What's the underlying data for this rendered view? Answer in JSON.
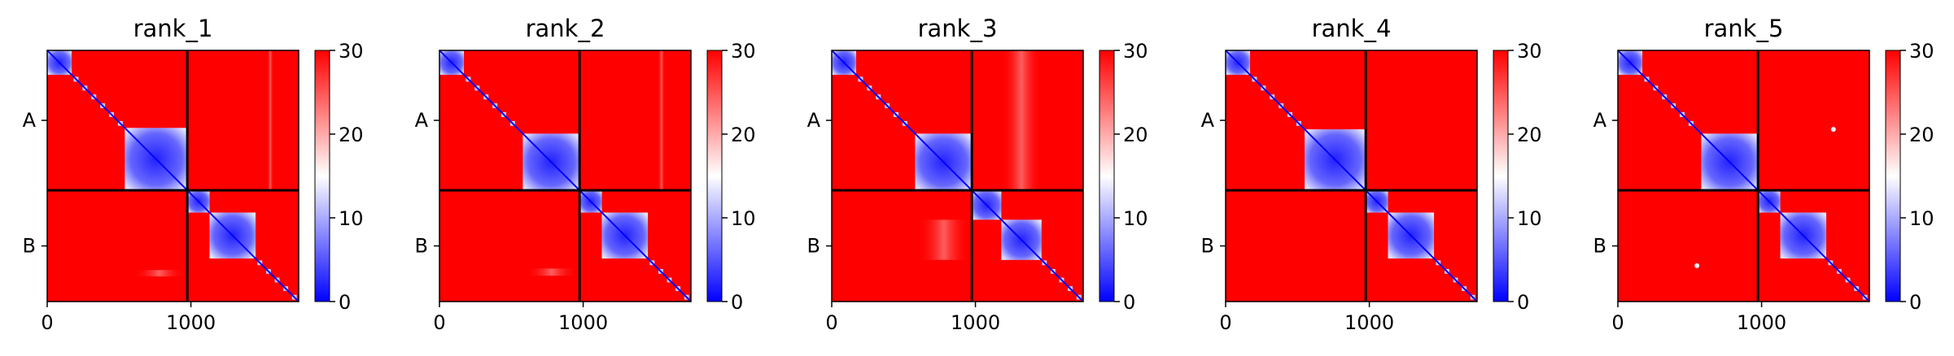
{
  "chart_data": {
    "type": "heatmap",
    "title": "",
    "colormap": {
      "low": "#0000ff",
      "mid": "#ffffff",
      "high": "#ff0000"
    },
    "color_range": [
      0,
      30
    ],
    "colorbar_ticks": [
      0,
      10,
      20,
      30
    ],
    "axis_range": [
      0,
      1750
    ],
    "x_ticks": [
      0,
      1000
    ],
    "chain_labels": [
      "A",
      "B"
    ],
    "chain_boundary": 975,
    "panels": [
      {
        "title": "rank_1",
        "domains": [
          [
            0,
            170
          ],
          [
            540,
            975
          ],
          [
            975,
            1130
          ],
          [
            1130,
            1450
          ]
        ],
        "off_blocks": [
          [
            1530,
            1575,
            0,
            975
          ],
          [
            600,
            960,
            1530,
            1575
          ]
        ],
        "spots": []
      },
      {
        "title": "rank_2",
        "domains": [
          [
            0,
            170
          ],
          [
            580,
            975
          ],
          [
            975,
            1130
          ],
          [
            1130,
            1450
          ]
        ],
        "off_blocks": [
          [
            1520,
            1570,
            0,
            975
          ],
          [
            600,
            960,
            1520,
            1570
          ]
        ],
        "spots": []
      },
      {
        "title": "rank_3",
        "domains": [
          [
            0,
            170
          ],
          [
            580,
            975
          ],
          [
            975,
            1180
          ],
          [
            1180,
            1460
          ]
        ],
        "off_blocks": [
          [
            1180,
            1460,
            0,
            975
          ],
          [
            600,
            960,
            1180,
            1460
          ]
        ],
        "spots": []
      },
      {
        "title": "rank_4",
        "domains": [
          [
            0,
            170
          ],
          [
            550,
            975
          ],
          [
            975,
            1130
          ],
          [
            1130,
            1450
          ]
        ],
        "off_blocks": [],
        "spots": []
      },
      {
        "title": "rank_5",
        "domains": [
          [
            0,
            170
          ],
          [
            580,
            975
          ],
          [
            975,
            1130
          ],
          [
            1130,
            1450
          ]
        ],
        "off_blocks": [],
        "spots": [
          [
            1500,
            550
          ]
        ]
      }
    ]
  }
}
